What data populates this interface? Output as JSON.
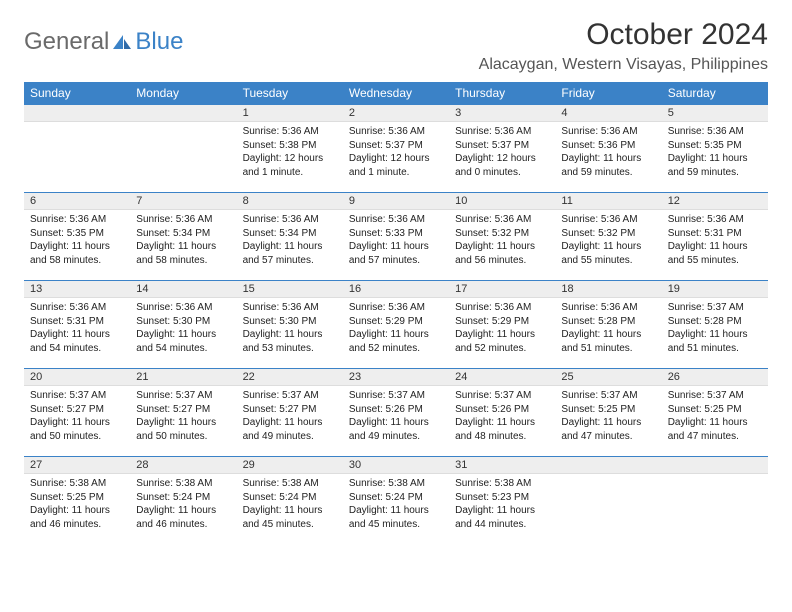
{
  "brand": {
    "part1": "General",
    "part2": "Blue"
  },
  "title": "October 2024",
  "location": "Alacaygan, Western Visayas, Philippines",
  "colors": {
    "header_bg": "#3b82c7",
    "header_text": "#ffffff",
    "daynum_bg": "#eeeeee",
    "cell_border": "#3b82c7",
    "logo_gray": "#6a6a6a",
    "logo_blue": "#3b82c7"
  },
  "typography": {
    "title_fontsize": 30,
    "location_fontsize": 16,
    "header_fontsize": 12,
    "daynum_fontsize": 11,
    "body_fontsize": 10
  },
  "day_headers": [
    "Sunday",
    "Monday",
    "Tuesday",
    "Wednesday",
    "Thursday",
    "Friday",
    "Saturday"
  ],
  "weeks": [
    [
      null,
      null,
      {
        "n": "1",
        "sr": "5:36 AM",
        "ss": "5:38 PM",
        "dl": "12 hours and 1 minute."
      },
      {
        "n": "2",
        "sr": "5:36 AM",
        "ss": "5:37 PM",
        "dl": "12 hours and 1 minute."
      },
      {
        "n": "3",
        "sr": "5:36 AM",
        "ss": "5:37 PM",
        "dl": "12 hours and 0 minutes."
      },
      {
        "n": "4",
        "sr": "5:36 AM",
        "ss": "5:36 PM",
        "dl": "11 hours and 59 minutes."
      },
      {
        "n": "5",
        "sr": "5:36 AM",
        "ss": "5:35 PM",
        "dl": "11 hours and 59 minutes."
      }
    ],
    [
      {
        "n": "6",
        "sr": "5:36 AM",
        "ss": "5:35 PM",
        "dl": "11 hours and 58 minutes."
      },
      {
        "n": "7",
        "sr": "5:36 AM",
        "ss": "5:34 PM",
        "dl": "11 hours and 58 minutes."
      },
      {
        "n": "8",
        "sr": "5:36 AM",
        "ss": "5:34 PM",
        "dl": "11 hours and 57 minutes."
      },
      {
        "n": "9",
        "sr": "5:36 AM",
        "ss": "5:33 PM",
        "dl": "11 hours and 57 minutes."
      },
      {
        "n": "10",
        "sr": "5:36 AM",
        "ss": "5:32 PM",
        "dl": "11 hours and 56 minutes."
      },
      {
        "n": "11",
        "sr": "5:36 AM",
        "ss": "5:32 PM",
        "dl": "11 hours and 55 minutes."
      },
      {
        "n": "12",
        "sr": "5:36 AM",
        "ss": "5:31 PM",
        "dl": "11 hours and 55 minutes."
      }
    ],
    [
      {
        "n": "13",
        "sr": "5:36 AM",
        "ss": "5:31 PM",
        "dl": "11 hours and 54 minutes."
      },
      {
        "n": "14",
        "sr": "5:36 AM",
        "ss": "5:30 PM",
        "dl": "11 hours and 54 minutes."
      },
      {
        "n": "15",
        "sr": "5:36 AM",
        "ss": "5:30 PM",
        "dl": "11 hours and 53 minutes."
      },
      {
        "n": "16",
        "sr": "5:36 AM",
        "ss": "5:29 PM",
        "dl": "11 hours and 52 minutes."
      },
      {
        "n": "17",
        "sr": "5:36 AM",
        "ss": "5:29 PM",
        "dl": "11 hours and 52 minutes."
      },
      {
        "n": "18",
        "sr": "5:36 AM",
        "ss": "5:28 PM",
        "dl": "11 hours and 51 minutes."
      },
      {
        "n": "19",
        "sr": "5:37 AM",
        "ss": "5:28 PM",
        "dl": "11 hours and 51 minutes."
      }
    ],
    [
      {
        "n": "20",
        "sr": "5:37 AM",
        "ss": "5:27 PM",
        "dl": "11 hours and 50 minutes."
      },
      {
        "n": "21",
        "sr": "5:37 AM",
        "ss": "5:27 PM",
        "dl": "11 hours and 50 minutes."
      },
      {
        "n": "22",
        "sr": "5:37 AM",
        "ss": "5:27 PM",
        "dl": "11 hours and 49 minutes."
      },
      {
        "n": "23",
        "sr": "5:37 AM",
        "ss": "5:26 PM",
        "dl": "11 hours and 49 minutes."
      },
      {
        "n": "24",
        "sr": "5:37 AM",
        "ss": "5:26 PM",
        "dl": "11 hours and 48 minutes."
      },
      {
        "n": "25",
        "sr": "5:37 AM",
        "ss": "5:25 PM",
        "dl": "11 hours and 47 minutes."
      },
      {
        "n": "26",
        "sr": "5:37 AM",
        "ss": "5:25 PM",
        "dl": "11 hours and 47 minutes."
      }
    ],
    [
      {
        "n": "27",
        "sr": "5:38 AM",
        "ss": "5:25 PM",
        "dl": "11 hours and 46 minutes."
      },
      {
        "n": "28",
        "sr": "5:38 AM",
        "ss": "5:24 PM",
        "dl": "11 hours and 46 minutes."
      },
      {
        "n": "29",
        "sr": "5:38 AM",
        "ss": "5:24 PM",
        "dl": "11 hours and 45 minutes."
      },
      {
        "n": "30",
        "sr": "5:38 AM",
        "ss": "5:24 PM",
        "dl": "11 hours and 45 minutes."
      },
      {
        "n": "31",
        "sr": "5:38 AM",
        "ss": "5:23 PM",
        "dl": "11 hours and 44 minutes."
      },
      null,
      null
    ]
  ],
  "labels": {
    "sunrise": "Sunrise:",
    "sunset": "Sunset:",
    "daylight": "Daylight:"
  }
}
